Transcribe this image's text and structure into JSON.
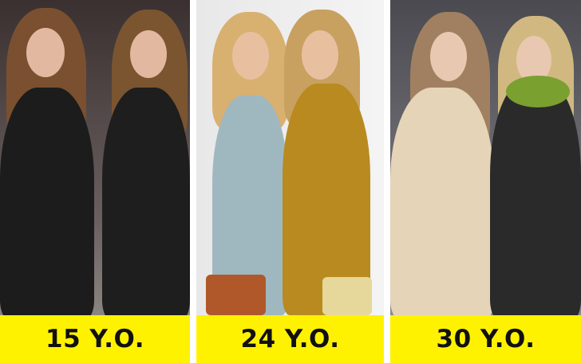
{
  "panels": [
    {
      "caption": "15 Y.O.",
      "photo": "twins-black-dresses"
    },
    {
      "caption": "24 Y.O.",
      "photo": "twins-blue-dress-gold-jacket"
    },
    {
      "caption": "30 Y.O.",
      "photo": "twins-lace-bohemian-outfits"
    }
  ],
  "colors": {
    "caption_bg": "#FFF200",
    "caption_text": "#111111"
  }
}
